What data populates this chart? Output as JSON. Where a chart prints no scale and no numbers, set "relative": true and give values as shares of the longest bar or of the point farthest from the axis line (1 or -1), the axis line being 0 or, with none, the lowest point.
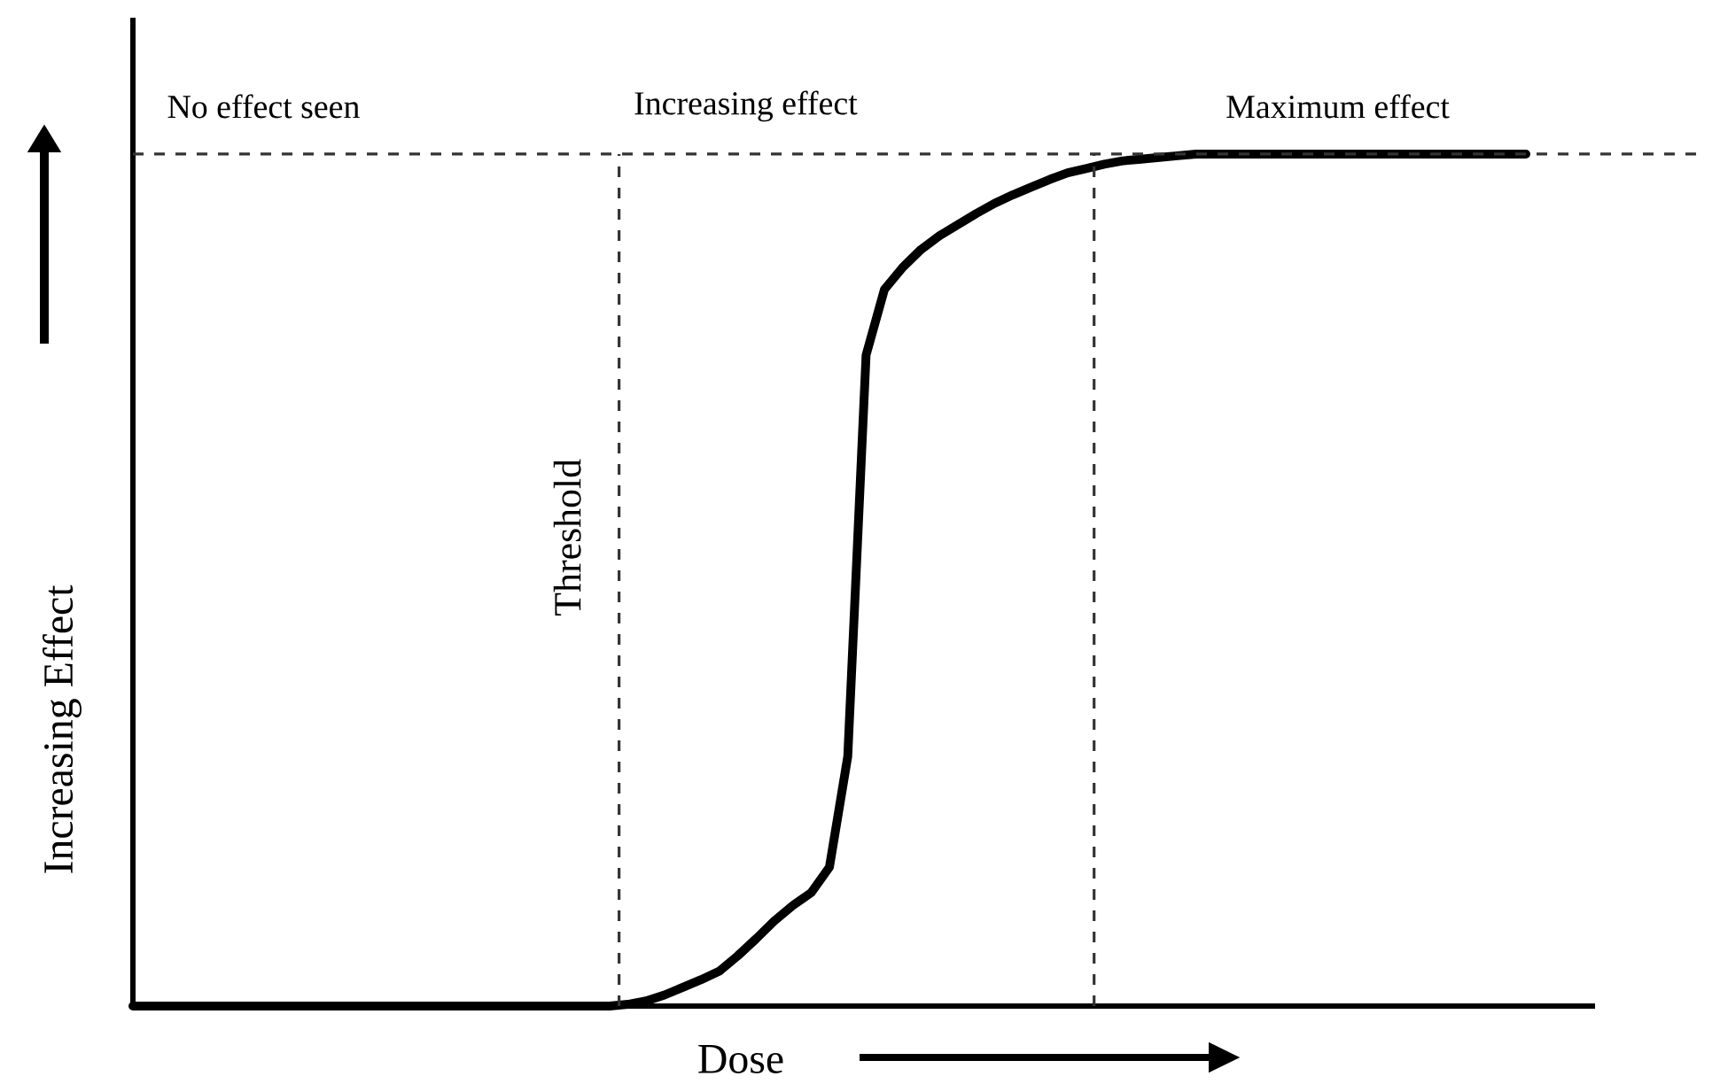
{
  "chart_data": {
    "type": "line",
    "relative": true,
    "xlabel": "Dose",
    "ylabel": "Increasing Effect",
    "categories": [
      null,
      null,
      null,
      null,
      null,
      null,
      null,
      null,
      null,
      null,
      null,
      null,
      null,
      null,
      null,
      null,
      null,
      null,
      null,
      null,
      null,
      null,
      null,
      null,
      null,
      null,
      null,
      null,
      null,
      null,
      null,
      null,
      null,
      null,
      null,
      null,
      null,
      null,
      null,
      null,
      null,
      null,
      null,
      null,
      null,
      null,
      null,
      null,
      null,
      null,
      null,
      null,
      null,
      null,
      null,
      null,
      null,
      null,
      null,
      null,
      null,
      null,
      null,
      null,
      null,
      null,
      null,
      null,
      null,
      null,
      null,
      null,
      null,
      null,
      null,
      null,
      null
    ],
    "values": [
      0,
      0,
      0,
      0,
      0,
      0,
      0,
      0,
      0,
      0,
      0,
      0,
      0,
      0,
      0,
      0,
      0,
      0,
      0,
      0,
      0,
      0,
      0,
      0,
      0,
      0,
      0,
      0.002,
      0.006,
      0.013,
      0.022,
      0.031,
      0.041,
      0.059,
      0.079,
      0.1,
      0.118,
      0.133,
      0.163,
      0.293,
      0.764,
      0.841,
      0.867,
      0.888,
      0.904,
      0.917,
      0.93,
      0.942,
      0.952,
      0.961,
      0.97,
      0.978,
      0.983,
      0.988,
      0.992,
      0.994,
      0.996,
      0.998,
      1,
      1,
      1,
      1,
      1,
      1,
      1,
      1,
      1,
      1,
      1,
      1,
      1,
      1,
      1,
      1,
      1,
      1,
      1
    ],
    "color": "#000000",
    "marker": "none",
    "line_style": "solid",
    "annotations": [
      "No effect seen",
      "Increasing effect",
      "Maximum effect",
      "Threshold"
    ]
  }
}
